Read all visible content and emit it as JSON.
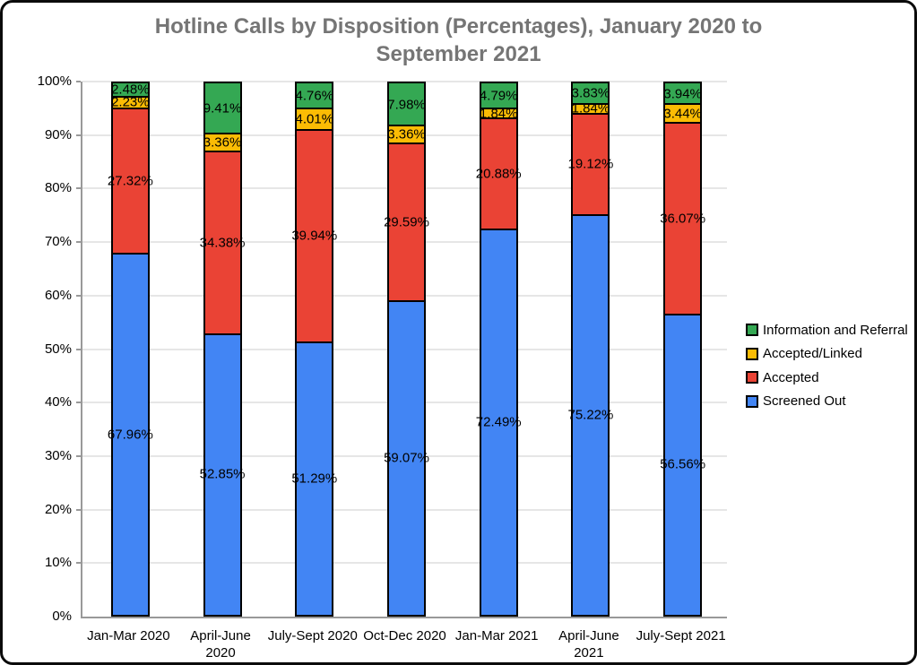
{
  "chart_data": {
    "type": "bar",
    "stacked": true,
    "orientation": "vertical",
    "title": "Hotline Calls by Disposition (Percentages), January 2020 to September 2021",
    "categories": [
      "Jan-Mar 2020",
      "April-June 2020",
      "July-Sept 2020",
      "Oct-Dec 2020",
      "Jan-Mar 2021",
      "April-June 2021",
      "July-Sept 2021"
    ],
    "series": [
      {
        "name": "Screened Out",
        "color": "#4285F4",
        "values": [
          67.96,
          52.85,
          51.29,
          59.07,
          72.49,
          75.22,
          56.56
        ]
      },
      {
        "name": "Accepted",
        "color": "#EA4335",
        "values": [
          27.32,
          34.38,
          39.94,
          29.59,
          20.88,
          19.12,
          36.07
        ]
      },
      {
        "name": "Accepted/Linked",
        "color": "#FBBC04",
        "values": [
          2.23,
          3.36,
          4.01,
          3.36,
          1.84,
          1.84,
          3.44
        ]
      },
      {
        "name": "Information and Referral",
        "color": "#34A853",
        "values": [
          2.48,
          9.41,
          4.76,
          7.98,
          4.79,
          3.83,
          3.94
        ]
      }
    ],
    "value_suffix": "%",
    "data_labels": true,
    "y_axis": {
      "min": 0,
      "max": 100,
      "step": 10,
      "ticks": [
        "0%",
        "10%",
        "20%",
        "30%",
        "40%",
        "50%",
        "60%",
        "70%",
        "80%",
        "90%",
        "100%"
      ]
    },
    "legend": {
      "position": "right",
      "top_to_bottom": [
        "Information and Referral",
        "Accepted/Linked",
        "Accepted",
        "Screened Out"
      ]
    },
    "grid": true
  },
  "colors": {
    "title": "#757575",
    "axis": "#999999",
    "gridline": "#e6e6e6",
    "bar_border": "#000000",
    "label_text": "#000000"
  }
}
